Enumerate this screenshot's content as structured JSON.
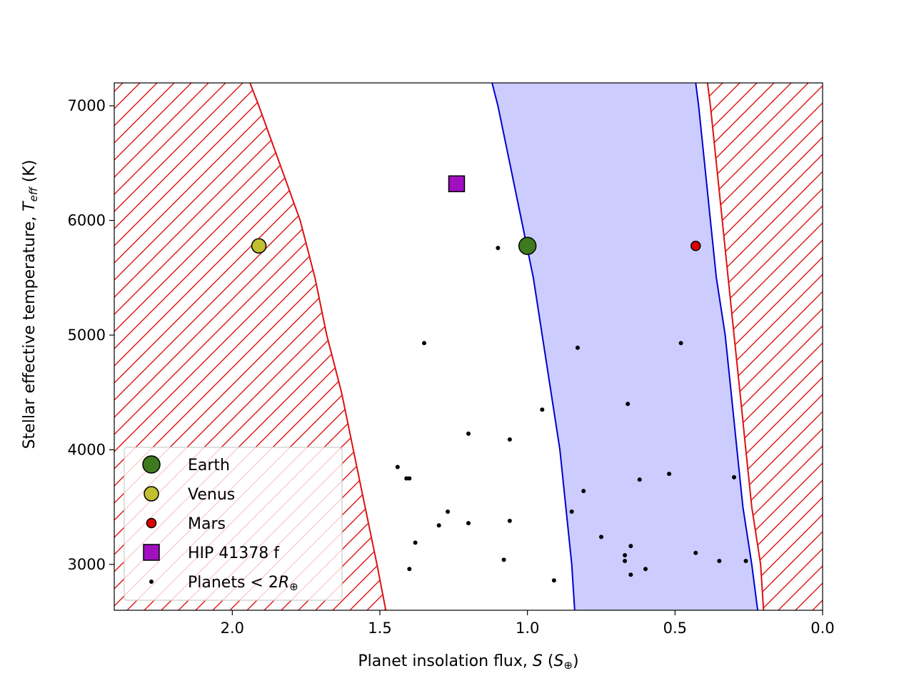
{
  "chart_data": {
    "type": "scatter",
    "title": "",
    "xlabel": "Planet insolation flux, S (S⊕)",
    "ylabel": "Stellar effective temperature, Teff (K)",
    "xlim": [
      2.4,
      0.0
    ],
    "ylim": [
      2600,
      7200
    ],
    "x_reversed": true,
    "x_ticks": [
      2.0,
      1.5,
      1.0,
      0.5,
      0.0
    ],
    "x_tick_labels": [
      "2.0",
      "1.5",
      "1.0",
      "0.5",
      "0.0"
    ],
    "y_ticks": [
      3000,
      4000,
      5000,
      6000,
      7000
    ],
    "y_tick_labels": [
      "3000",
      "4000",
      "5000",
      "6000",
      "7000"
    ],
    "grid": false,
    "legend_position": "bottom-left",
    "regions": {
      "optimistic_inner_edge": {
        "style": "red hatch (excluded, hotter side)",
        "color": "#dd1111",
        "points": [
          [
            1.94,
            7200
          ],
          [
            1.91,
            7000
          ],
          [
            1.84,
            6500
          ],
          [
            1.77,
            6000
          ],
          [
            1.72,
            5500
          ],
          [
            1.68,
            5000
          ],
          [
            1.63,
            4500
          ],
          [
            1.59,
            4000
          ],
          [
            1.55,
            3500
          ],
          [
            1.51,
            3000
          ],
          [
            1.48,
            2600
          ]
        ]
      },
      "conservative_inner_edge": {
        "color": "#0000cc",
        "points": [
          [
            1.12,
            7200
          ],
          [
            1.1,
            7000
          ],
          [
            1.06,
            6500
          ],
          [
            1.02,
            6000
          ],
          [
            0.98,
            5500
          ],
          [
            0.95,
            5000
          ],
          [
            0.92,
            4500
          ],
          [
            0.89,
            4000
          ],
          [
            0.87,
            3500
          ],
          [
            0.85,
            3000
          ],
          [
            0.84,
            2600
          ]
        ]
      },
      "conservative_outer_edge": {
        "color": "#0000cc",
        "points": [
          [
            0.43,
            7200
          ],
          [
            0.42,
            7000
          ],
          [
            0.4,
            6500
          ],
          [
            0.38,
            6000
          ],
          [
            0.36,
            5500
          ],
          [
            0.33,
            5000
          ],
          [
            0.31,
            4500
          ],
          [
            0.29,
            4000
          ],
          [
            0.27,
            3500
          ],
          [
            0.24,
            3000
          ],
          [
            0.22,
            2600
          ]
        ]
      },
      "optimistic_outer_edge": {
        "style": "red hatch (excluded, colder side)",
        "color": "#dd1111",
        "points": [
          [
            0.39,
            7200
          ],
          [
            0.38,
            7000
          ],
          [
            0.36,
            6500
          ],
          [
            0.34,
            6000
          ],
          [
            0.32,
            5500
          ],
          [
            0.3,
            5000
          ],
          [
            0.28,
            4500
          ],
          [
            0.26,
            4000
          ],
          [
            0.24,
            3500
          ],
          [
            0.21,
            3000
          ],
          [
            0.2,
            2600
          ]
        ]
      },
      "habitable_zone_fill": "#ccccff"
    },
    "series": [
      {
        "name": "Earth",
        "marker": "circle-large",
        "color": "#3f7a1e",
        "points": [
          [
            1.0,
            5778
          ]
        ]
      },
      {
        "name": "Venus",
        "marker": "circle-medium",
        "color": "#bfbf30",
        "points": [
          [
            1.91,
            5778
          ]
        ]
      },
      {
        "name": "Mars",
        "marker": "circle-small",
        "color": "#dd0000",
        "points": [
          [
            0.43,
            5778
          ]
        ]
      },
      {
        "name": "HIP 41378 f",
        "marker": "square",
        "color": "#a010c0",
        "points": [
          [
            1.24,
            6320
          ]
        ]
      },
      {
        "name": "Planets < 2R⊕",
        "marker": "dot",
        "color": "#000000",
        "points": [
          [
            1.1,
            5760
          ],
          [
            1.35,
            4930
          ],
          [
            0.83,
            4890
          ],
          [
            0.48,
            4930
          ],
          [
            0.66,
            4400
          ],
          [
            0.95,
            4350
          ],
          [
            1.2,
            4140
          ],
          [
            1.06,
            4090
          ],
          [
            1.44,
            3850
          ],
          [
            1.41,
            3750
          ],
          [
            1.4,
            3750
          ],
          [
            0.62,
            3740
          ],
          [
            0.52,
            3790
          ],
          [
            0.3,
            3760
          ],
          [
            0.81,
            3640
          ],
          [
            1.27,
            3460
          ],
          [
            0.85,
            3460
          ],
          [
            1.06,
            3380
          ],
          [
            1.2,
            3360
          ],
          [
            1.3,
            3340
          ],
          [
            0.75,
            3240
          ],
          [
            1.38,
            3190
          ],
          [
            0.65,
            3160
          ],
          [
            0.67,
            3080
          ],
          [
            0.43,
            3100
          ],
          [
            1.08,
            3040
          ],
          [
            0.67,
            3030
          ],
          [
            0.35,
            3030
          ],
          [
            0.26,
            3030
          ],
          [
            1.4,
            2960
          ],
          [
            0.6,
            2960
          ],
          [
            0.65,
            2910
          ],
          [
            0.91,
            2860
          ]
        ]
      }
    ],
    "legend": [
      {
        "label": "Earth",
        "series": 0
      },
      {
        "label": "Venus",
        "series": 1
      },
      {
        "label": "Mars",
        "series": 2
      },
      {
        "label": "HIP 41378 f",
        "series": 3
      },
      {
        "label": "Planets < 2R⊕",
        "series": 4
      }
    ]
  }
}
